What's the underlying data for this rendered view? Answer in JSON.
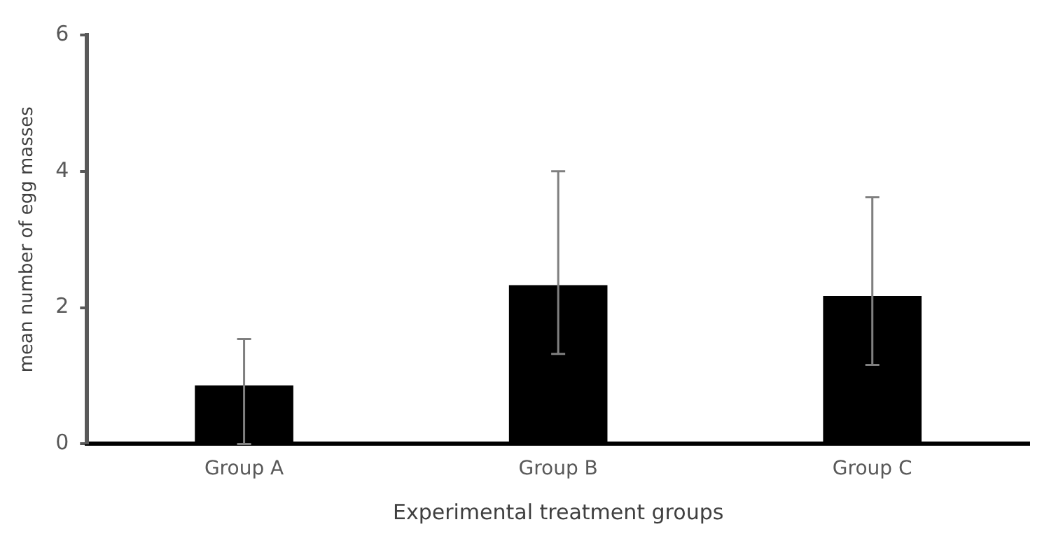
{
  "chart_data": {
    "type": "bar",
    "xlabel": "Experimental treatment groups",
    "ylabel": "mean number of egg masses",
    "categories": [
      "Group A",
      "Group B",
      "Group C"
    ],
    "values": [
      0.86,
      2.33,
      2.17
    ],
    "errors": [
      [
        0,
        1.54
      ],
      [
        1.32,
        4.0
      ],
      [
        1.16,
        3.62
      ]
    ],
    "color": "#000000",
    "ylim": [
      0,
      6
    ],
    "yticks": [
      0,
      2,
      4,
      6
    ],
    "grid": false
  }
}
